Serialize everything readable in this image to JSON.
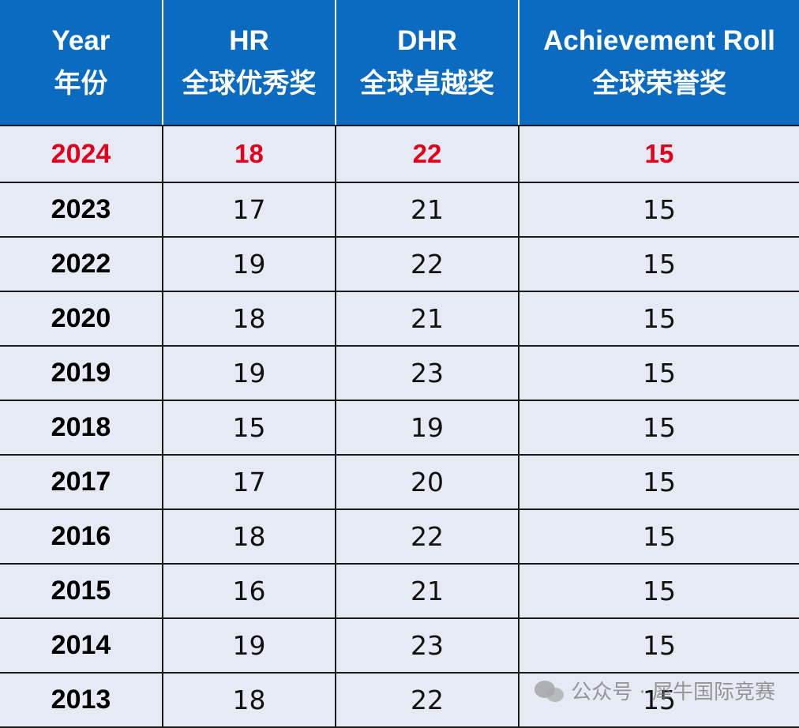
{
  "header": {
    "year": {
      "en": "Year",
      "zh": "年份"
    },
    "hr": {
      "en": "HR",
      "zh": "全球优秀奖"
    },
    "dhr": {
      "en": "DHR",
      "zh": "全球卓越奖"
    },
    "achievement": {
      "en": "Achievement Roll",
      "zh": "全球荣誉奖"
    }
  },
  "rows": [
    {
      "year": "2024",
      "hr": "18",
      "dhr": "22",
      "achievement": "15"
    },
    {
      "year": "2023",
      "hr": "17",
      "dhr": "21",
      "achievement": "15"
    },
    {
      "year": "2022",
      "hr": "19",
      "dhr": "22",
      "achievement": "15"
    },
    {
      "year": "2020",
      "hr": "18",
      "dhr": "21",
      "achievement": "15"
    },
    {
      "year": "2019",
      "hr": "19",
      "dhr": "23",
      "achievement": "15"
    },
    {
      "year": "2018",
      "hr": "15",
      "dhr": "19",
      "achievement": "15"
    },
    {
      "year": "2017",
      "hr": "17",
      "dhr": "20",
      "achievement": "15"
    },
    {
      "year": "2016",
      "hr": "18",
      "dhr": "22",
      "achievement": "15"
    },
    {
      "year": "2015",
      "hr": "16",
      "dhr": "21",
      "achievement": "15"
    },
    {
      "year": "2014",
      "hr": "19",
      "dhr": "23",
      "achievement": "15"
    },
    {
      "year": "2013",
      "hr": "18",
      "dhr": "22",
      "achievement": "15"
    }
  ],
  "watermark": {
    "icon": "wechat-icon",
    "text": "公众号 · 犀牛国际竞赛"
  },
  "colors": {
    "header_bg": "#0a6bc1",
    "row_bg": "#e6eaf4",
    "highlight_text": "#e2001a"
  }
}
